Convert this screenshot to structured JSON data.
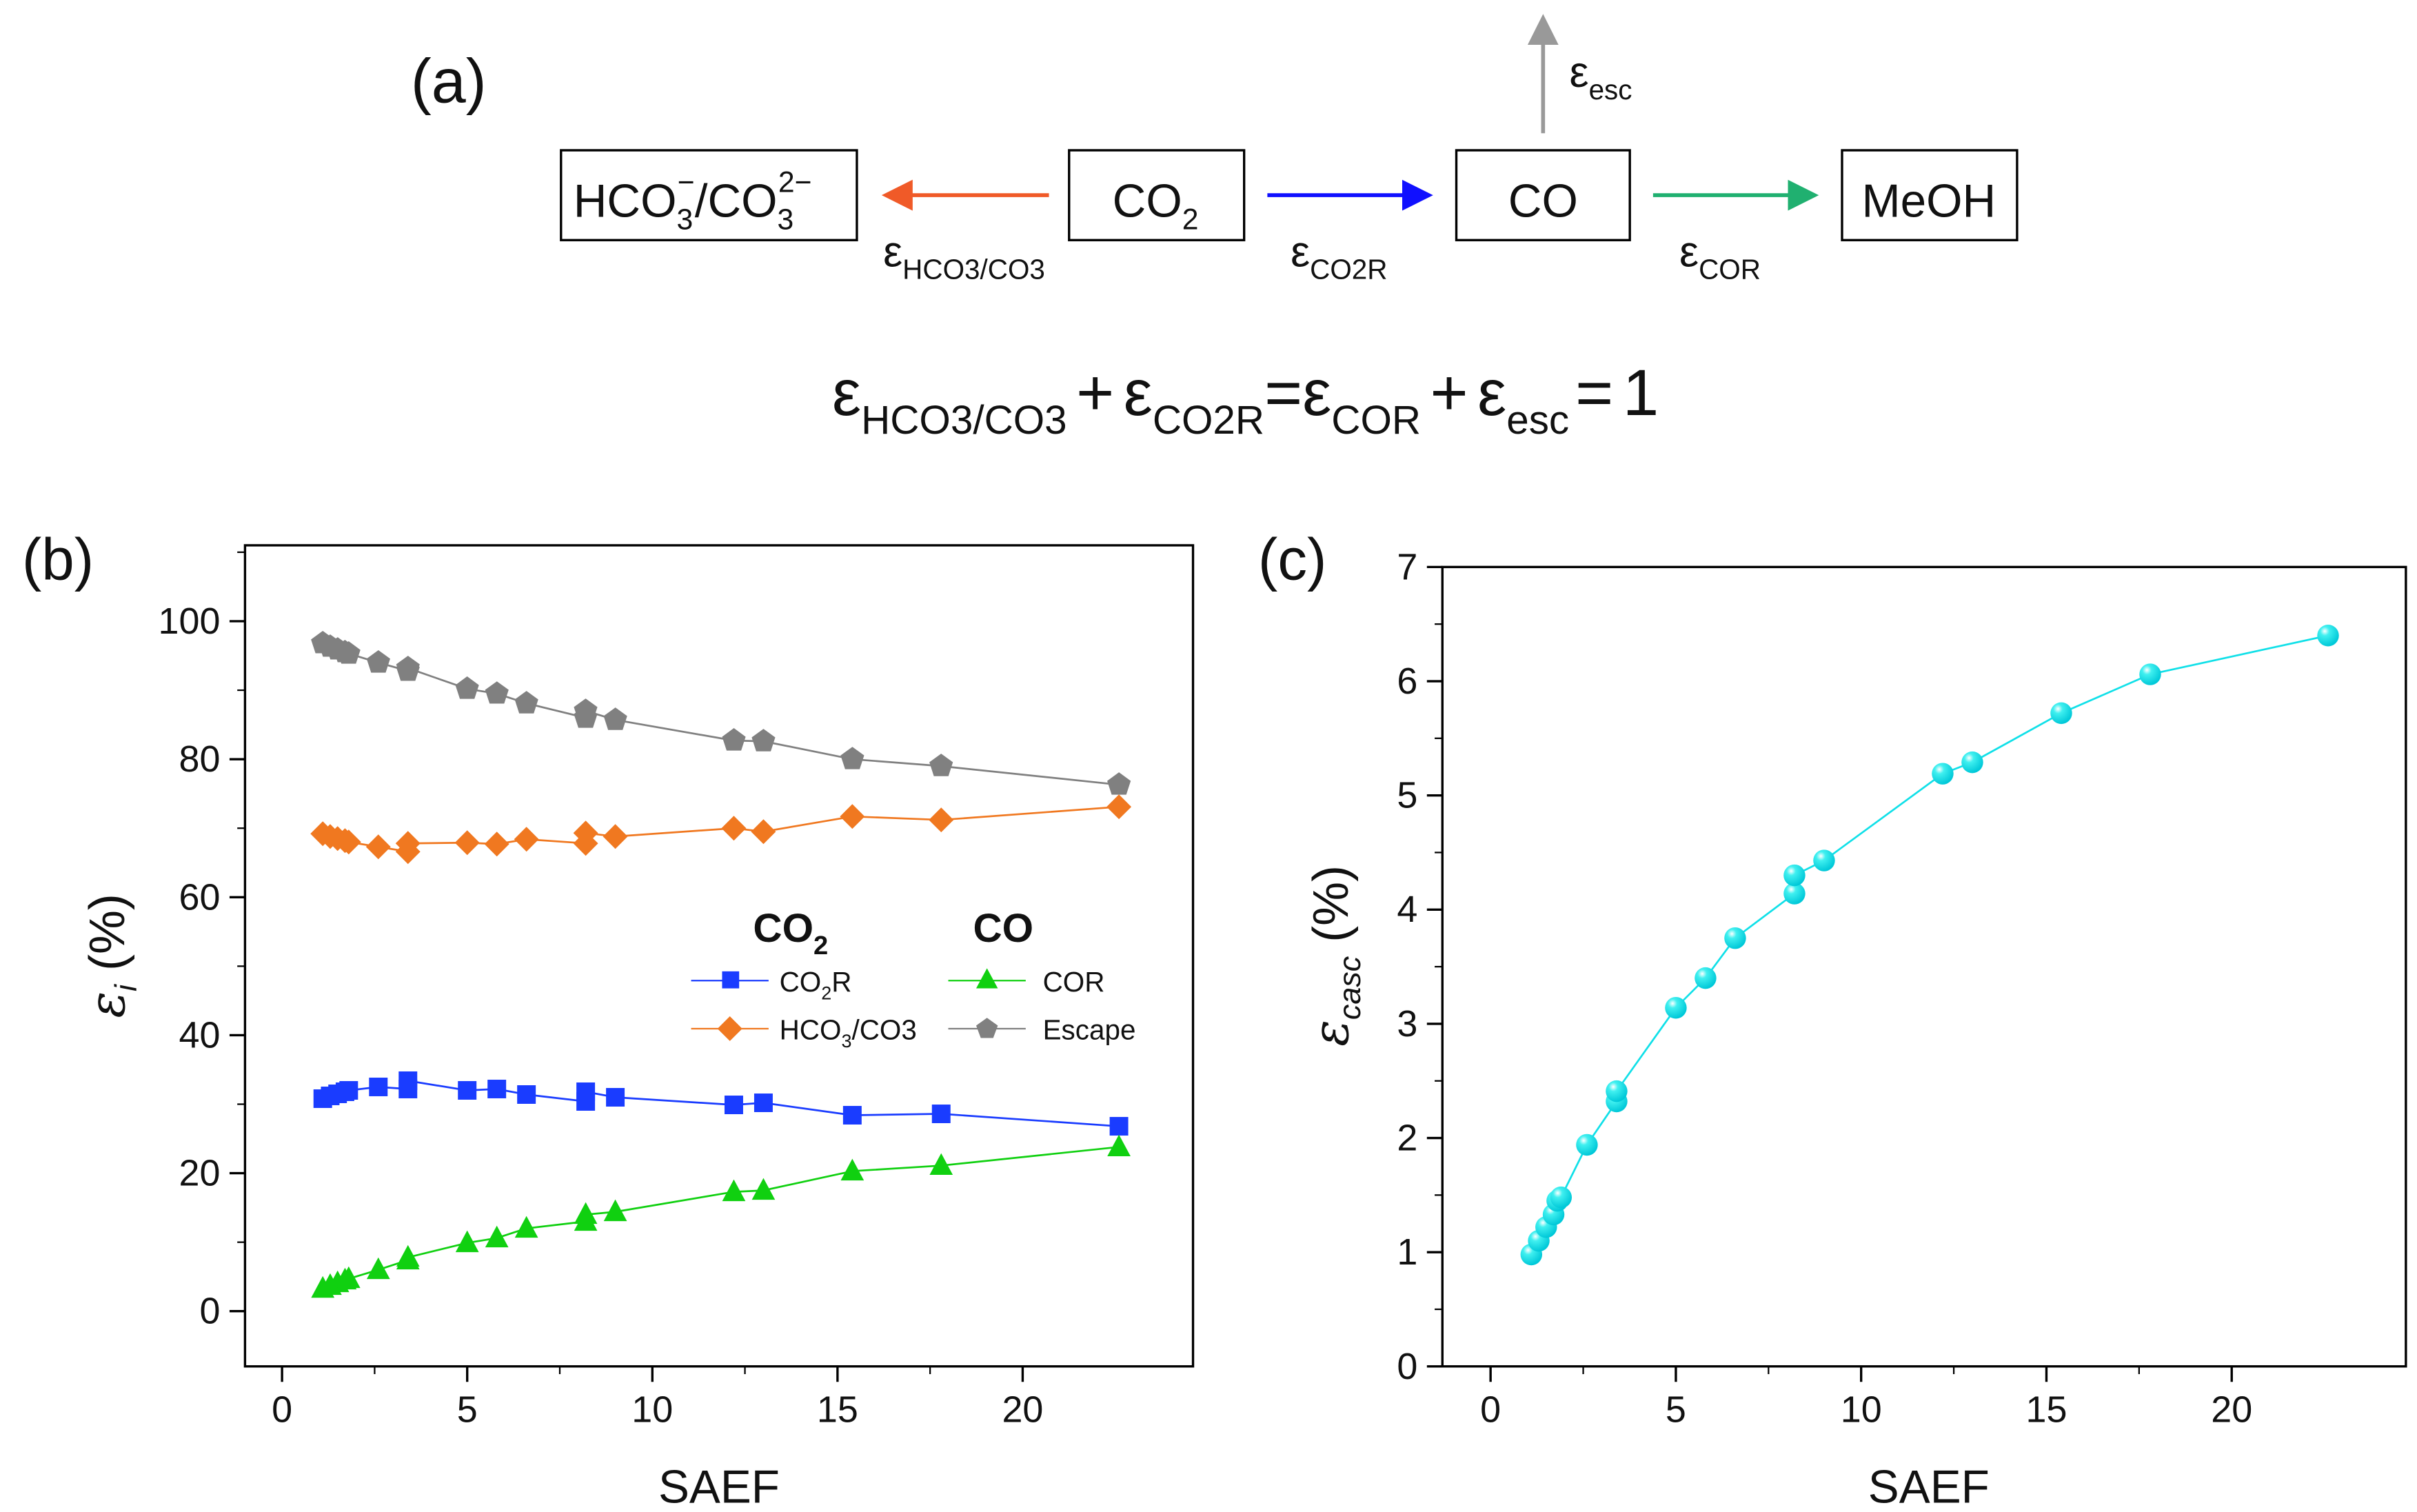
{
  "panel_a": {
    "label": "(a)",
    "box_hco3": {
      "main": "HCO",
      "sub1": "3",
      "sup1": "−",
      "mid": "/CO",
      "sub2": "3",
      "sup2": "2−"
    },
    "box_co2": {
      "main": "CO",
      "sub": "2"
    },
    "box_co": {
      "main": "CO"
    },
    "box_meoh": {
      "main": "MeOH"
    },
    "eps": "ε",
    "lab_hco3": "HCO3/CO3",
    "lab_co2r": "CO2R",
    "lab_cor": "COR",
    "lab_esc": "esc",
    "equation": {
      "plus": "+",
      "equals": "=",
      "one": "1"
    },
    "colors": {
      "hco3": "#f05a28",
      "co2r": "#1010ff",
      "cor": "#20b070",
      "esc": "#999999"
    }
  },
  "chart_data": [
    {
      "panel_label": "(b)",
      "type": "line",
      "xlabel": "SAEF",
      "ylabel": {
        "main": "ε",
        "sub": "i",
        "unit": " (%)"
      },
      "xlim": [
        -1,
        24.6
      ],
      "ylim": [
        -8,
        111
      ],
      "xticks": [
        0,
        5,
        10,
        15,
        20
      ],
      "yticks": [
        0,
        20,
        40,
        60,
        80,
        100
      ],
      "x": [
        1.1,
        1.3,
        1.5,
        1.7,
        1.8,
        2.6,
        3.4,
        3.4,
        5.0,
        5.8,
        6.6,
        8.2,
        8.2,
        9.0,
        12.2,
        13.0,
        15.4,
        17.8,
        22.6
      ],
      "series": [
        {
          "name": "Escape",
          "color": "#808080",
          "marker": "pentagon",
          "values": [
            96.8,
            96.3,
            95.9,
            95.5,
            95.3,
            94.0,
            92.8,
            93.2,
            90.2,
            89.5,
            88.1,
            86.0,
            87.0,
            85.7,
            82.7,
            82.6,
            80.0,
            79.0,
            76.3
          ]
        },
        {
          "name": "HCO3/CO3",
          "color": "#f07820",
          "marker": "diamond",
          "values": [
            69.2,
            68.8,
            68.5,
            68.2,
            68.0,
            67.3,
            66.6,
            67.8,
            67.9,
            67.7,
            68.4,
            67.8,
            69.3,
            68.8,
            70.0,
            69.5,
            71.7,
            71.2,
            73.1
          ]
        },
        {
          "name": "CO2R",
          "color": "#1a3cff",
          "marker": "square",
          "values": [
            30.8,
            31.2,
            31.5,
            31.8,
            32.0,
            32.5,
            32.2,
            33.4,
            32.0,
            32.2,
            31.4,
            30.4,
            31.8,
            31.0,
            29.9,
            30.2,
            28.4,
            28.6,
            26.8
          ]
        },
        {
          "name": "COR",
          "color": "#10d010",
          "marker": "triangle",
          "values": [
            3.3,
            3.7,
            4.1,
            4.5,
            4.7,
            6.0,
            7.4,
            7.8,
            9.9,
            10.6,
            12.0,
            13.0,
            14.0,
            14.4,
            17.3,
            17.5,
            20.3,
            21.1,
            23.8
          ]
        }
      ],
      "legend": {
        "placement": "center-right",
        "head_co2": {
          "main": "CO",
          "sub": "2"
        },
        "head_co": "CO",
        "co2r": {
          "main": "CO",
          "sub": "2",
          "tail": "R"
        },
        "hco3": {
          "main": "HCO",
          "sub": "3",
          "tail": "/CO3"
        },
        "cor": "COR",
        "escape": "Escape"
      }
    },
    {
      "panel_label": "(c)",
      "type": "scatter",
      "xlabel": "SAEF",
      "ylabel": {
        "main": "ε",
        "sub": "casc",
        "unit": " (%)"
      },
      "xlim": [
        -1.3,
        24.7
      ],
      "ylim": [
        0,
        7
      ],
      "xticks": [
        0,
        5,
        10,
        15,
        20
      ],
      "yticks": [
        0,
        1,
        2,
        3,
        4,
        5,
        6,
        7
      ],
      "color": "#10e0e8",
      "x": [
        1.1,
        1.3,
        1.5,
        1.7,
        1.8,
        1.9,
        2.6,
        3.4,
        3.4,
        5.0,
        5.8,
        6.6,
        8.2,
        8.2,
        9.0,
        12.2,
        13.0,
        15.4,
        17.8,
        22.6
      ],
      "values": [
        0.98,
        1.1,
        1.22,
        1.33,
        1.45,
        1.48,
        1.94,
        2.32,
        2.41,
        3.14,
        3.4,
        3.75,
        4.14,
        4.3,
        4.43,
        5.19,
        5.29,
        5.72,
        6.06,
        6.4
      ]
    }
  ]
}
